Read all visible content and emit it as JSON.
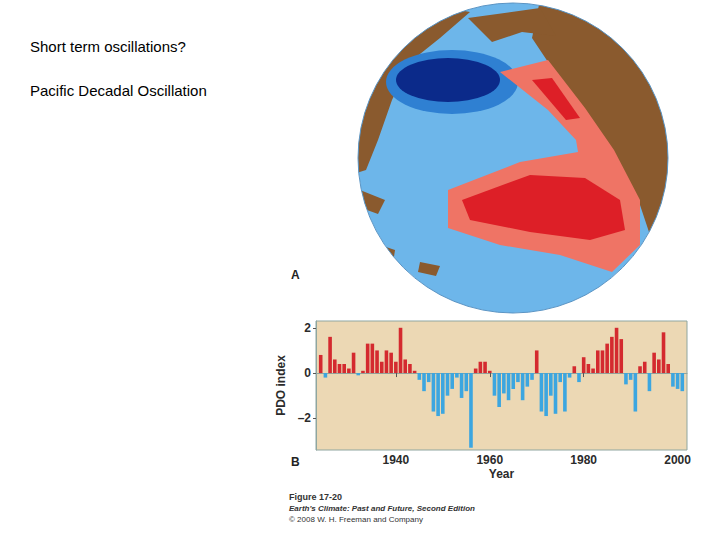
{
  "slide": {
    "lines": [
      "Short term oscillations?",
      "Pacific Decadal Oscillation"
    ],
    "panel_labels": [
      "A",
      "B"
    ],
    "caption": {
      "figure": "Figure 17-20",
      "book": "Earth's Climate: Past and Future, Second Edition",
      "copyright": "© 2008 W. H. Freeman and Company"
    }
  },
  "chart_data": {
    "type": "bar",
    "x": [
      1924,
      1925,
      1926,
      1927,
      1928,
      1929,
      1930,
      1931,
      1932,
      1933,
      1934,
      1935,
      1936,
      1937,
      1938,
      1939,
      1940,
      1941,
      1942,
      1943,
      1944,
      1945,
      1946,
      1947,
      1948,
      1949,
      1950,
      1951,
      1952,
      1953,
      1954,
      1955,
      1956,
      1957,
      1958,
      1959,
      1960,
      1961,
      1962,
      1963,
      1964,
      1965,
      1966,
      1967,
      1968,
      1969,
      1970,
      1971,
      1972,
      1973,
      1974,
      1975,
      1976,
      1977,
      1978,
      1979,
      1980,
      1981,
      1982,
      1983,
      1984,
      1985,
      1986,
      1987,
      1988,
      1989,
      1990,
      1991,
      1992,
      1993,
      1994,
      1995,
      1996,
      1997,
      1998,
      1999,
      2000,
      2001
    ],
    "values": [
      0.8,
      -0.2,
      1.6,
      0.6,
      0.4,
      0.4,
      0.2,
      0.9,
      -0.1,
      0.1,
      1.3,
      1.3,
      1.0,
      0.5,
      1.0,
      0.9,
      0.5,
      2.0,
      0.6,
      0.4,
      0.1,
      -0.3,
      -0.8,
      -0.4,
      -1.7,
      -1.9,
      -1.8,
      -1.0,
      -0.7,
      -0.2,
      -1.1,
      -0.8,
      -3.3,
      0.2,
      0.5,
      0.5,
      0.1,
      -1.0,
      -1.5,
      -0.9,
      -1.2,
      -0.7,
      -0.4,
      -1.2,
      -0.6,
      -0.3,
      1.0,
      -1.7,
      -1.9,
      -1.0,
      -1.8,
      -0.4,
      -1.7,
      -0.2,
      0.3,
      -0.4,
      0.7,
      0.4,
      0.2,
      1.0,
      1.0,
      1.3,
      1.6,
      2.0,
      1.5,
      -0.5,
      -0.3,
      -1.7,
      0.3,
      0.5,
      -0.8,
      0.9,
      0.6,
      1.8,
      0.4,
      -0.6,
      -0.7,
      -0.8
    ],
    "colors": [
      "#d42a2f",
      "#3ca6e0",
      "#d42a2f",
      "#d42a2f",
      "#d42a2f",
      "#d42a2f",
      "#d42a2f",
      "#d42a2f",
      "#3ca6e0",
      "#d42a2f",
      "#d42a2f",
      "#d42a2f",
      "#d42a2f",
      "#d42a2f",
      "#d42a2f",
      "#d42a2f",
      "#d42a2f",
      "#d42a2f",
      "#d42a2f",
      "#d42a2f",
      "#d42a2f",
      "#3ca6e0",
      "#3ca6e0",
      "#3ca6e0",
      "#3ca6e0",
      "#3ca6e0",
      "#3ca6e0",
      "#3ca6e0",
      "#3ca6e0",
      "#3ca6e0",
      "#3ca6e0",
      "#3ca6e0",
      "#3ca6e0",
      "#d42a2f",
      "#d42a2f",
      "#d42a2f",
      "#d42a2f",
      "#3ca6e0",
      "#3ca6e0",
      "#3ca6e0",
      "#3ca6e0",
      "#3ca6e0",
      "#3ca6e0",
      "#3ca6e0",
      "#3ca6e0",
      "#3ca6e0",
      "#d42a2f",
      "#3ca6e0",
      "#3ca6e0",
      "#3ca6e0",
      "#3ca6e0",
      "#3ca6e0",
      "#3ca6e0",
      "#3ca6e0",
      "#d42a2f",
      "#3ca6e0",
      "#d42a2f",
      "#d42a2f",
      "#d42a2f",
      "#d42a2f",
      "#d42a2f",
      "#d42a2f",
      "#d42a2f",
      "#d42a2f",
      "#d42a2f",
      "#3ca6e0",
      "#3ca6e0",
      "#3ca6e0",
      "#d42a2f",
      "#d42a2f",
      "#3ca6e0",
      "#d42a2f",
      "#d42a2f",
      "#d42a2f",
      "#d42a2f",
      "#3ca6e0",
      "#3ca6e0",
      "#3ca6e0"
    ],
    "xlabel": "Year",
    "ylabel": "PDO index",
    "xlim": [
      1923,
      2002
    ],
    "xticks": [
      1940,
      1960,
      1980,
      2000
    ],
    "ylim": [
      -3.4,
      2.3
    ],
    "yticks": [
      {
        "value": -2,
        "label": "–2"
      },
      0,
      2
    ],
    "grid": false
  }
}
